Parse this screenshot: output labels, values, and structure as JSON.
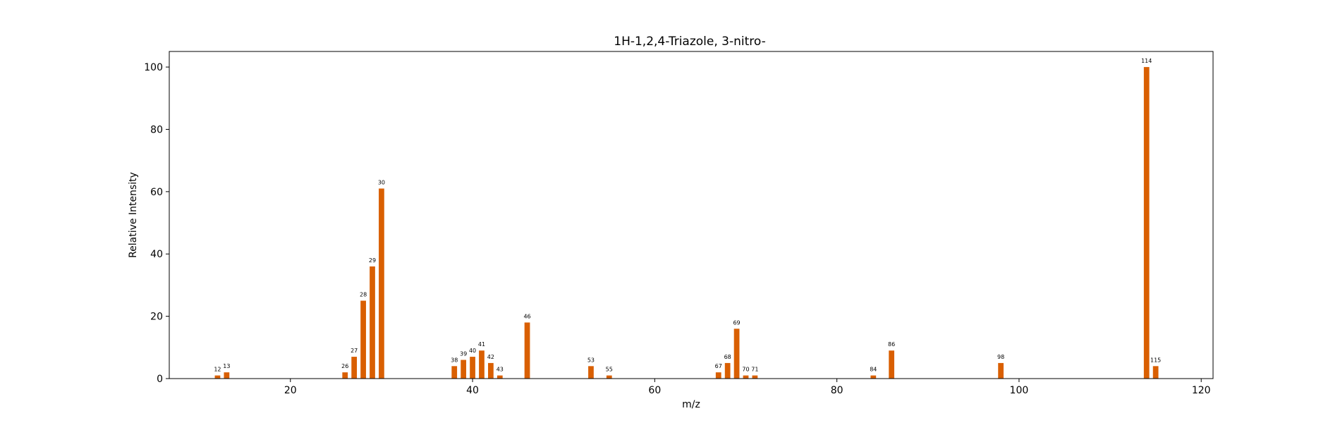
{
  "chart_data": {
    "type": "bar",
    "title": "1H-1,2,4-Triazole, 3-nitro-",
    "xlabel": "m/z",
    "ylabel": "Relative Intensity",
    "xlim": [
      6.7,
      121.3
    ],
    "ylim": [
      0,
      105
    ],
    "xticks": [
      20,
      40,
      60,
      80,
      100,
      120
    ],
    "yticks": [
      0,
      20,
      40,
      60,
      80,
      100
    ],
    "grid": false,
    "bar_color": "#d95f02",
    "x": [
      12,
      13,
      26,
      27,
      28,
      29,
      30,
      38,
      39,
      40,
      41,
      42,
      43,
      46,
      53,
      55,
      67,
      68,
      69,
      70,
      71,
      84,
      86,
      98,
      114,
      115
    ],
    "values": [
      1,
      2,
      2,
      7,
      25,
      36,
      61,
      4,
      6,
      7,
      9,
      5,
      1,
      18,
      4,
      1,
      2,
      5,
      16,
      1,
      1,
      1,
      9,
      5,
      100,
      4
    ],
    "labels": [
      "12",
      "13",
      "26",
      "27",
      "28",
      "29",
      "30",
      "38",
      "39",
      "40",
      "41",
      "42",
      "43",
      "46",
      "53",
      "55",
      "67",
      "68",
      "69",
      "70",
      "71",
      "84",
      "86",
      "98",
      "114",
      "115"
    ]
  }
}
